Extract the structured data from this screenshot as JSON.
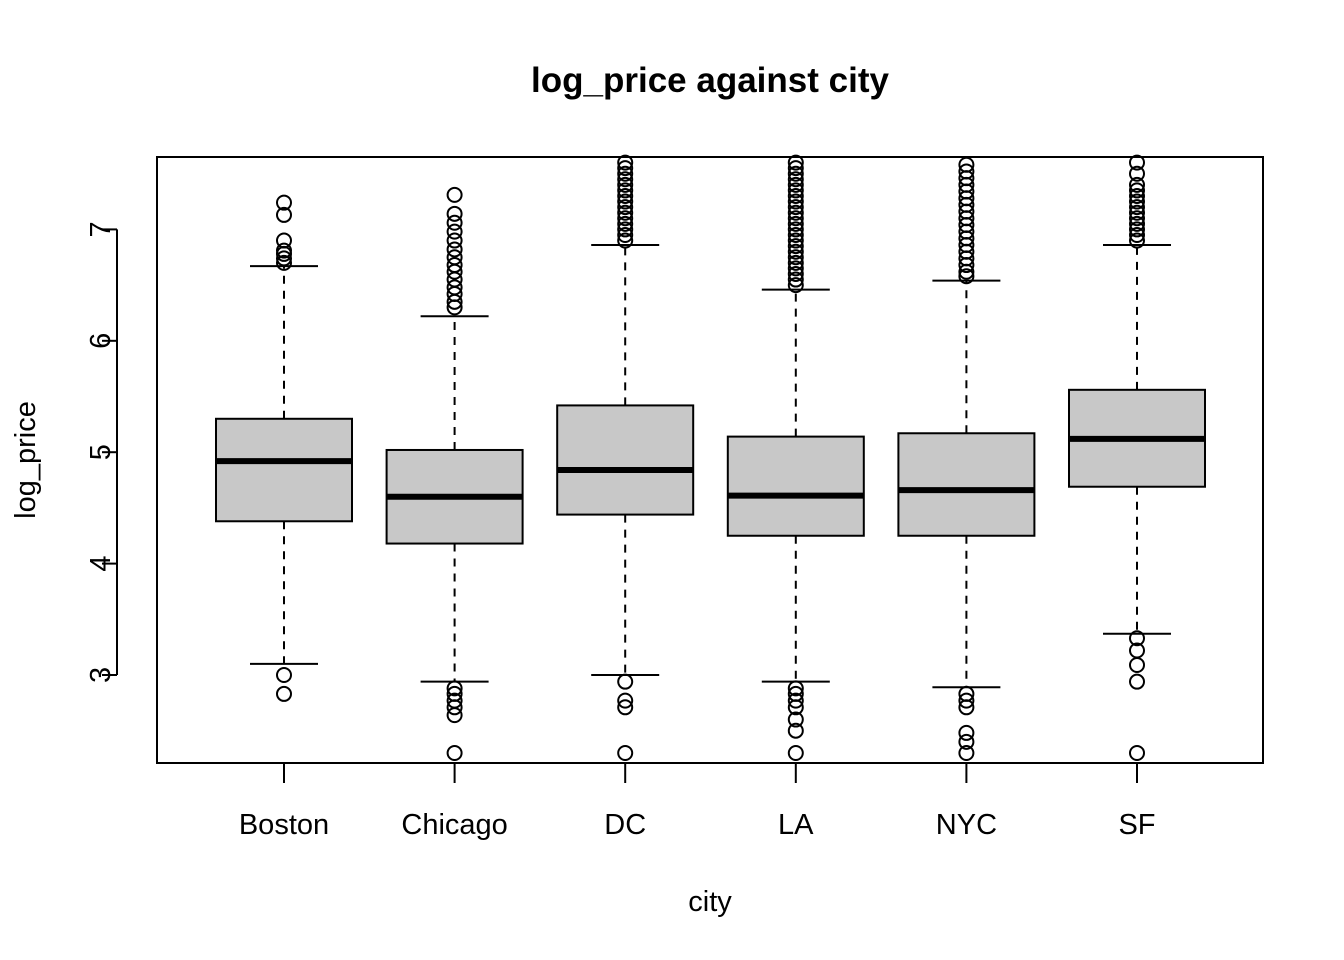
{
  "chart_data": {
    "type": "boxplot",
    "title": "log_price against city",
    "xlabel": "city",
    "ylabel": "log_price",
    "ylim": [
      2.21,
      7.65
    ],
    "yticks": [
      3,
      4,
      5,
      6,
      7
    ],
    "grid": false,
    "legend": "none",
    "colors": {
      "box_fill": "#c8c8c8",
      "stroke": "#000000",
      "background": "#ffffff"
    },
    "categories": [
      "Boston",
      "Chicago",
      "DC",
      "LA",
      "NYC",
      "SF"
    ],
    "boxes": [
      {
        "category": "Boston",
        "whisker_low": 3.1,
        "q1": 4.38,
        "median": 4.92,
        "q3": 5.3,
        "whisker_high": 6.67,
        "outliers": [
          2.83,
          3.0,
          6.7,
          6.74,
          6.78,
          6.81,
          6.9,
          7.13,
          7.24
        ]
      },
      {
        "category": "Chicago",
        "whisker_low": 2.94,
        "q1": 4.18,
        "median": 4.6,
        "q3": 5.02,
        "whisker_high": 6.22,
        "outliers": [
          2.3,
          2.64,
          2.71,
          2.77,
          2.83,
          2.88,
          6.3,
          6.35,
          6.42,
          6.48,
          6.55,
          6.62,
          6.68,
          6.75,
          6.82,
          6.9,
          6.98,
          7.06,
          7.14,
          7.31
        ]
      },
      {
        "category": "DC",
        "whisker_low": 3.0,
        "q1": 4.44,
        "median": 4.84,
        "q3": 5.42,
        "whisker_high": 6.86,
        "outliers": [
          2.3,
          2.71,
          2.77,
          2.94,
          6.9,
          6.95,
          7.0,
          7.05,
          7.1,
          7.15,
          7.2,
          7.25,
          7.3,
          7.35,
          7.4,
          7.45,
          7.5,
          7.55,
          7.6
        ]
      },
      {
        "category": "LA",
        "whisker_low": 2.94,
        "q1": 4.25,
        "median": 4.61,
        "q3": 5.14,
        "whisker_high": 6.46,
        "outliers": [
          2.3,
          2.5,
          2.6,
          2.71,
          2.77,
          2.83,
          2.88,
          6.5,
          6.55,
          6.6,
          6.65,
          6.7,
          6.75,
          6.8,
          6.85,
          6.9,
          6.95,
          7.0,
          7.05,
          7.1,
          7.15,
          7.2,
          7.25,
          7.3,
          7.35,
          7.4,
          7.45,
          7.5,
          7.55,
          7.6
        ]
      },
      {
        "category": "NYC",
        "whisker_low": 2.89,
        "q1": 4.25,
        "median": 4.66,
        "q3": 5.17,
        "whisker_high": 6.54,
        "outliers": [
          2.3,
          2.4,
          2.48,
          2.71,
          2.77,
          2.83,
          6.58,
          6.62,
          6.68,
          6.74,
          6.8,
          6.86,
          6.92,
          6.98,
          7.04,
          7.1,
          7.16,
          7.22,
          7.28,
          7.34,
          7.4,
          7.46,
          7.52,
          7.58
        ]
      },
      {
        "category": "SF",
        "whisker_low": 3.37,
        "q1": 4.69,
        "median": 5.12,
        "q3": 5.56,
        "whisker_high": 6.86,
        "outliers": [
          2.3,
          2.94,
          3.09,
          3.22,
          3.33,
          6.9,
          6.95,
          7.0,
          7.05,
          7.1,
          7.15,
          7.2,
          7.25,
          7.3,
          7.35,
          7.4,
          7.5,
          7.6
        ]
      }
    ]
  }
}
